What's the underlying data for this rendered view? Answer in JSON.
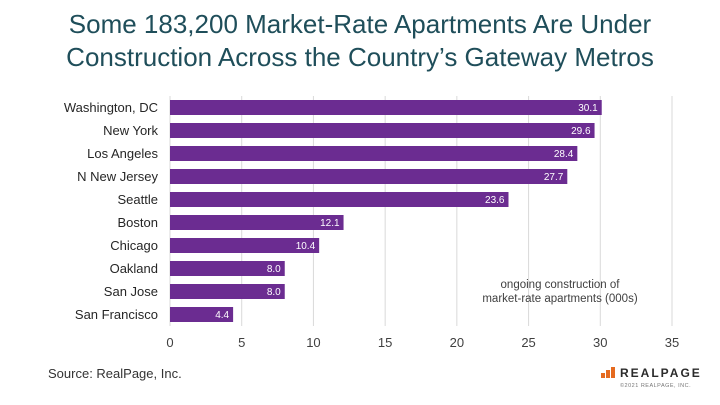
{
  "title": "Some 183,200 Market-Rate Apartments Are Under Construction Across the Country’s Gateway Metros",
  "source": "Source: RealPage, Inc.",
  "logo": {
    "name": "REALPAGE",
    "copyright": "©2021 REALPAGE, INC."
  },
  "colors": {
    "bar": "#6b2c91",
    "title": "#1f4e5a",
    "grid": "#d9d9d9"
  },
  "chart_data": {
    "type": "bar",
    "orientation": "horizontal",
    "categories": [
      "Washington, DC",
      "New York",
      "Los Angeles",
      "N New Jersey",
      "Seattle",
      "Boston",
      "Chicago",
      "Oakland",
      "San Jose",
      "San Francisco"
    ],
    "values": [
      30.1,
      29.6,
      28.4,
      27.7,
      23.6,
      12.1,
      10.4,
      8.0,
      8.0,
      4.4
    ],
    "value_labels": [
      "30.1",
      "29.6",
      "28.4",
      "27.7",
      "23.6",
      "12.1",
      "10.4",
      "8.0",
      "8.0",
      "4.4"
    ],
    "x_ticks": [
      0,
      5,
      10,
      15,
      20,
      25,
      30,
      35
    ],
    "xlim": [
      0,
      35
    ],
    "annotation": [
      "ongoing construction of",
      "market-rate apartments (000s)"
    ],
    "grid": true
  }
}
